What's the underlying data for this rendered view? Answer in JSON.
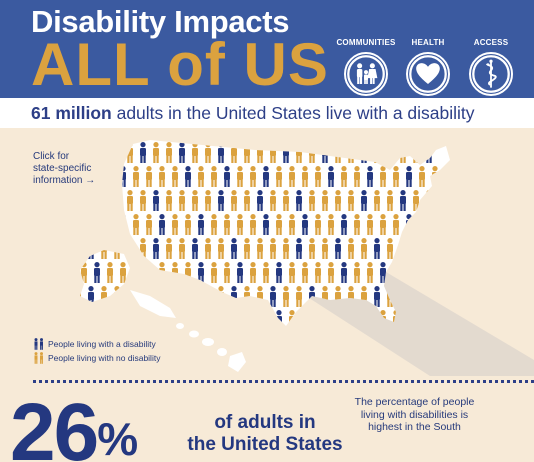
{
  "header": {
    "title_line1": "Disability Impacts",
    "title_line2": "ALL of US",
    "icons": [
      {
        "label": "COMMUNITIES",
        "icon": "family-icon"
      },
      {
        "label": "HEALTH",
        "icon": "heart-icon"
      },
      {
        "label": "ACCESS",
        "icon": "caduceus-icon"
      }
    ]
  },
  "subheader": {
    "bold": "61 million",
    "rest": " adults in the United States live with a disability"
  },
  "map": {
    "click_lines": [
      "Click for",
      "state-specific",
      "information →"
    ]
  },
  "legend": {
    "disability": "People living with a disability",
    "no_disability": "People living with no disability"
  },
  "stat": {
    "percent": "26",
    "percent_sign": "%",
    "line1": "of adults in",
    "line2": "the United States"
  },
  "south_note": "The percentage of people living with disabilities is highest in the South",
  "colors": {
    "header_blue": "#3b5aa0",
    "gold": "#dba23f",
    "navy": "#243880",
    "background": "#f7ead7"
  }
}
